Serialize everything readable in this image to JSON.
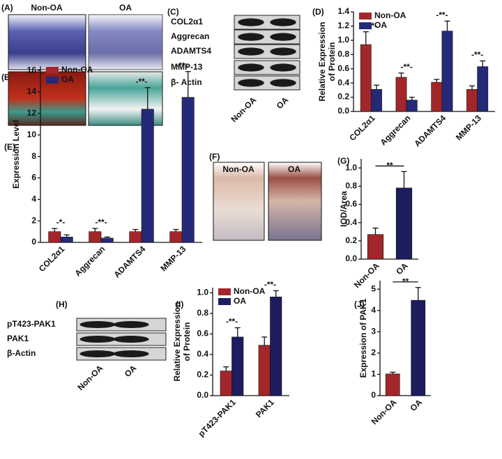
{
  "panels": {
    "A": {
      "label": "(A)",
      "columns": [
        "Non-OA",
        "OA"
      ]
    },
    "B": {
      "label": "(B)"
    },
    "C": {
      "label": "(C)",
      "rows": [
        "COL2α1",
        "Aggrecan",
        "ADAMTS4",
        "MMP-13",
        "β- Actin"
      ],
      "columns": [
        "Non-OA",
        "OA"
      ]
    },
    "F": {
      "label": "(F)",
      "columns": [
        "Non-OA",
        "OA"
      ]
    },
    "H": {
      "label": "(H)",
      "rows": [
        "pT423-PAK1",
        "PAK1",
        "β-Actin"
      ],
      "columns": [
        "Non-OA",
        "OA"
      ]
    }
  },
  "chart_data": [
    {
      "type": "bar",
      "label": "(D)",
      "ylabel": [
        "Relative Expression",
        "of Protein"
      ],
      "categories": [
        "COL2α1",
        "Aggrecan",
        "ADAMTS4",
        "MMP-13"
      ],
      "series": [
        {
          "name": "Non-OA",
          "color": "#a3262b",
          "values": [
            0.94,
            0.48,
            0.41,
            0.31
          ],
          "errors": [
            0.18,
            0.06,
            0.04,
            0.05
          ]
        },
        {
          "name": "OA",
          "color": "#252a78",
          "values": [
            0.31,
            0.16,
            1.13,
            0.63
          ],
          "errors": [
            0.06,
            0.04,
            0.14,
            0.08
          ]
        }
      ],
      "annotations": [
        "-**-",
        "-**-",
        "-**-",
        "-**-"
      ],
      "ylim": [
        0,
        1.4
      ],
      "yticks": [
        {
          "value": 0,
          "label": "0.0"
        },
        0.2,
        0.4,
        0.6,
        0.8,
        {
          "value": 1,
          "label": "1.0"
        },
        1.2,
        1.4
      ]
    },
    {
      "type": "bar",
      "label": "(E)",
      "ylabel": [
        "Expression Level"
      ],
      "categories": [
        "COL2α1",
        "Aggrecan",
        "ADAMTS4",
        "MMP-13"
      ],
      "series": [
        {
          "name": "Non-OA",
          "color": "#a3262b",
          "values": [
            1.0,
            1.0,
            1.0,
            1.0
          ],
          "errors": [
            0.3,
            0.3,
            0.2,
            0.2
          ]
        },
        {
          "name": "OA",
          "color": "#252a78",
          "values": [
            0.5,
            0.4,
            12.4,
            13.5
          ],
          "errors": [
            0.2,
            0.1,
            2.0,
            2.4
          ]
        }
      ],
      "annotations": [
        "-*-",
        "-**-",
        "-**-",
        "-**-"
      ],
      "ylim": [
        0,
        16.4
      ],
      "yticks": [
        0,
        2,
        4,
        6,
        8,
        10,
        12,
        14,
        16
      ]
    },
    {
      "type": "bar",
      "label": "(G)",
      "ylabel": [
        "IOD/Area"
      ],
      "categories": [
        "Non-OA",
        "OA"
      ],
      "values": [
        0.27,
        0.78
      ],
      "errors": [
        0.07,
        0.18
      ],
      "colors": [
        "#a3262b",
        "#1c1c5e"
      ],
      "annotations": [
        "**"
      ],
      "ylim": [
        0,
        1.1
      ],
      "yticks": [
        {
          "value": 0,
          "label": "0.0"
        },
        0.2,
        0.4,
        0.6,
        0.8,
        {
          "value": 1,
          "label": "1.0"
        }
      ]
    },
    {
      "type": "bar",
      "label": "(I)",
      "ylabel": [
        "Relative Expression",
        "of Protein"
      ],
      "categories": [
        "pT423-PAK1",
        "PAK1"
      ],
      "series": [
        {
          "name": "Non-OA",
          "color": "#a3262b",
          "values": [
            0.24,
            0.49
          ],
          "errors": [
            0.04,
            0.08
          ]
        },
        {
          "name": "OA",
          "color": "#1c1c5e",
          "values": [
            0.57,
            0.96
          ],
          "errors": [
            0.09,
            0.06
          ]
        }
      ],
      "annotations": [
        "-**-",
        "-**-"
      ],
      "ylim": [
        0,
        1.05
      ],
      "yticks": [
        {
          "value": 0,
          "label": "0.0"
        },
        0.2,
        0.4,
        0.6,
        0.8,
        {
          "value": 1,
          "label": "1.0"
        }
      ]
    },
    {
      "type": "bar",
      "label": "(J)",
      "ylabel": [
        "Expression of PAK1"
      ],
      "categories": [
        "Non-OA",
        "OA"
      ],
      "values": [
        1.02,
        4.48
      ],
      "errors": [
        0.08,
        0.6
      ],
      "colors": [
        "#a3262b",
        "#1c1c5e"
      ],
      "annotations": [
        "**"
      ],
      "ylim": [
        0,
        5.4
      ],
      "yticks": [
        0,
        1,
        2,
        3,
        4,
        5
      ]
    }
  ]
}
